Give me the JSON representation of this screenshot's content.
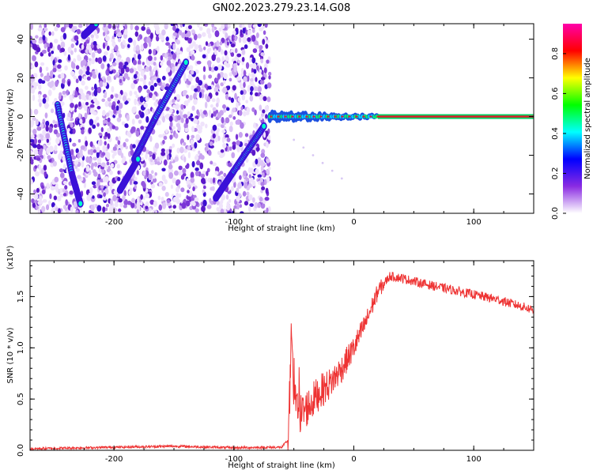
{
  "title": "GN02.2023.279.23.14.G08",
  "colorbar": {
    "label": "Normalized spectral amplitude",
    "ticks": [
      "0.0",
      "0.2",
      "0.4",
      "0.6",
      "0.8"
    ],
    "tick_values": [
      0.0,
      0.2,
      0.4,
      0.6,
      0.8
    ],
    "range": [
      0,
      0.95
    ],
    "colors": [
      "#ffffff",
      "#8a2be2",
      "#0000ff",
      "#00ffff",
      "#00ff00",
      "#ffff00",
      "#ff0000",
      "#ff00aa"
    ]
  },
  "chart_data": [
    {
      "type": "heatmap",
      "name": "spectrogram",
      "xlabel": "Height of straight line (km)",
      "ylabel": "Frequency (Hz)",
      "xlim": [
        -270,
        150
      ],
      "ylim": [
        -50,
        48
      ],
      "xticks": [
        -200,
        -100,
        0,
        100
      ],
      "xtick_labels": [
        "-200",
        "-100",
        "0",
        "100"
      ],
      "yticks": [
        -40,
        -20,
        0,
        20,
        40
      ],
      "ytick_labels": [
        "-40",
        "-20",
        "0",
        "20",
        "40"
      ],
      "features": [
        {
          "kind": "ridge",
          "x": [
            -247,
            -235,
            -228
          ],
          "y": [
            6,
            -30,
            -45
          ]
        },
        {
          "kind": "ridge",
          "x": [
            -183,
            -165,
            -140
          ],
          "y": [
            -22,
            0,
            28
          ]
        },
        {
          "kind": "ridge",
          "x": [
            -195,
            -180
          ],
          "y": [
            -38,
            -22
          ]
        },
        {
          "kind": "ridge",
          "x": [
            -115,
            -100,
            -75
          ],
          "y": [
            -42,
            -28,
            -5
          ]
        },
        {
          "kind": "ridge",
          "x": [
            -225,
            -215
          ],
          "y": [
            42,
            48
          ]
        },
        {
          "kind": "line",
          "x": [
            -70,
            150
          ],
          "y": [
            0,
            0
          ]
        }
      ],
      "grid": false
    },
    {
      "type": "line",
      "name": "snr",
      "xlabel": "Height of straight line (km)",
      "ylabel": "SNR (10 * v/v)",
      "y_multiplier": "(x10⁴)",
      "xlim": [
        -270,
        150
      ],
      "ylim": [
        0,
        1.85
      ],
      "xticks": [
        -200,
        -100,
        0,
        100
      ],
      "xtick_labels": [
        "-200",
        "-100",
        "0",
        "100"
      ],
      "yticks": [
        0.0,
        0.5,
        1.0,
        1.5
      ],
      "ytick_labels": [
        "0.0",
        "0.5",
        "1.0",
        "1.5"
      ],
      "color": "#ee3333",
      "x": [
        -270,
        -200,
        -150,
        -100,
        -60,
        -55,
        -52,
        -50,
        -45,
        -40,
        -30,
        -20,
        -10,
        0,
        10,
        20,
        30,
        40,
        60,
        80,
        100,
        120,
        150
      ],
      "y": [
        0.015,
        0.03,
        0.04,
        0.025,
        0.03,
        0.1,
        0.95,
        0.5,
        0.35,
        0.4,
        0.55,
        0.65,
        0.8,
        1.0,
        1.25,
        1.55,
        1.7,
        1.68,
        1.62,
        1.57,
        1.52,
        1.47,
        1.37
      ],
      "grid": false
    }
  ]
}
